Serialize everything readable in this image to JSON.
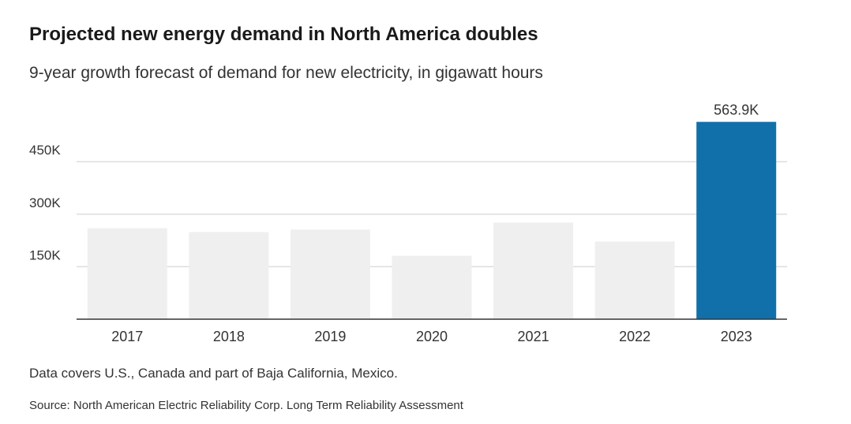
{
  "title": "Projected new energy demand in North America doubles",
  "subtitle": "9-year growth forecast of demand for new electricity, in gigawatt hours",
  "note": "Data covers U.S., Canada and part of Baja California, Mexico.",
  "source": "Source: North American Electric Reliability Corp. Long Term Reliability Assessment",
  "colors": {
    "highlight": "#1170aa",
    "bar": "#efefef",
    "grid": "#dddddd",
    "axis": "#333333"
  },
  "chart_data": {
    "type": "bar",
    "title": "Projected new energy demand in North America doubles",
    "xlabel": "",
    "ylabel": "",
    "categories": [
      "2017",
      "2018",
      "2019",
      "2020",
      "2021",
      "2022",
      "2023"
    ],
    "values": [
      260000,
      249000,
      256000,
      181000,
      276000,
      222000,
      563900
    ],
    "ylim": [
      0,
      563900
    ],
    "yticks": [
      150000,
      300000,
      450000
    ],
    "ytick_labels": [
      "150K",
      "300K",
      "450K"
    ],
    "data_labels": [
      {
        "category": "2023",
        "text": "563.9K"
      }
    ],
    "highlight": "2023",
    "grid": true,
    "legend": "none"
  }
}
